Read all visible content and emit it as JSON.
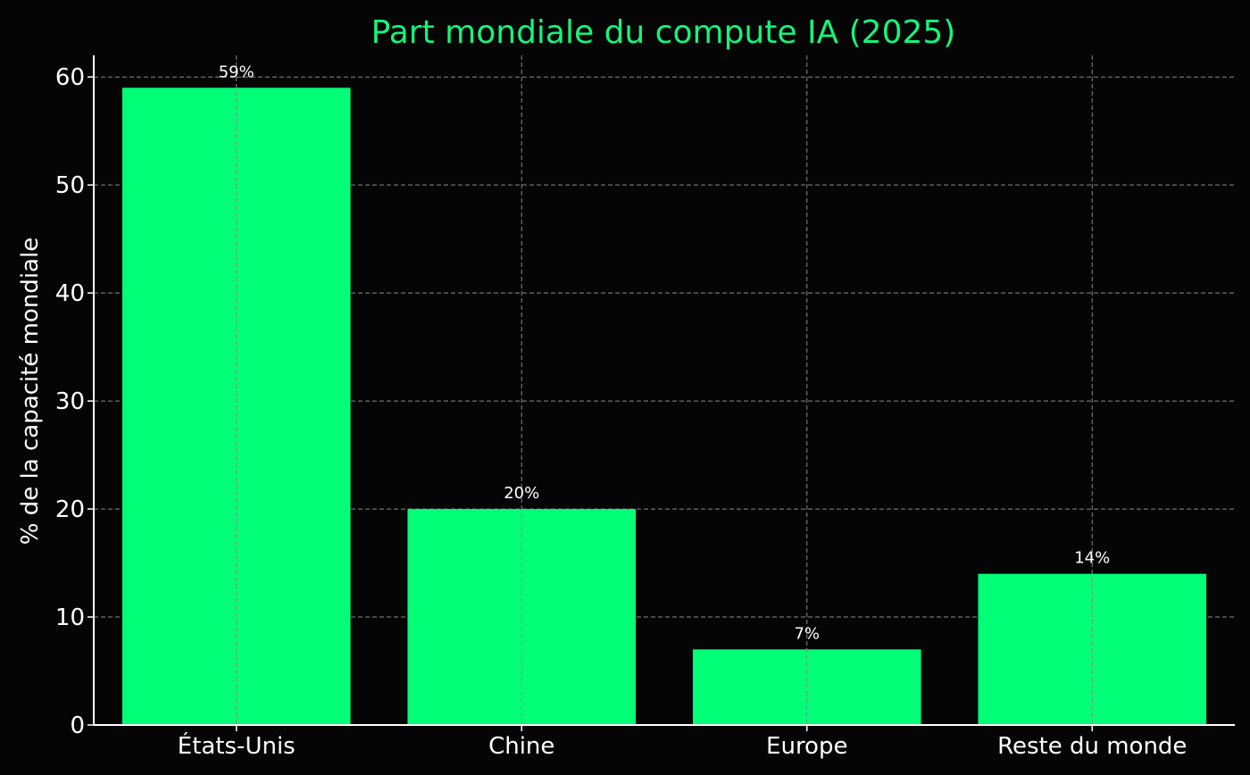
{
  "chart_data": {
    "type": "bar",
    "title": "Part mondiale du compute IA (2025)",
    "xlabel": "",
    "ylabel": "% de la capacité mondiale",
    "categories": [
      "États-Unis",
      "Chine",
      "Europe",
      "Reste du monde"
    ],
    "values": [
      59,
      20,
      7,
      14
    ],
    "data_labels": [
      "59%",
      "20%",
      "7%",
      "14%"
    ],
    "ylim": [
      0,
      62
    ],
    "yticks": [
      0,
      10,
      20,
      30,
      40,
      50,
      60
    ],
    "grid": true,
    "legend": "none"
  },
  "colors": {
    "background": "#050505",
    "bar": "#00ff76",
    "title": "#14f57a",
    "text": "#ffffff",
    "grid": "#8a8a8a"
  }
}
